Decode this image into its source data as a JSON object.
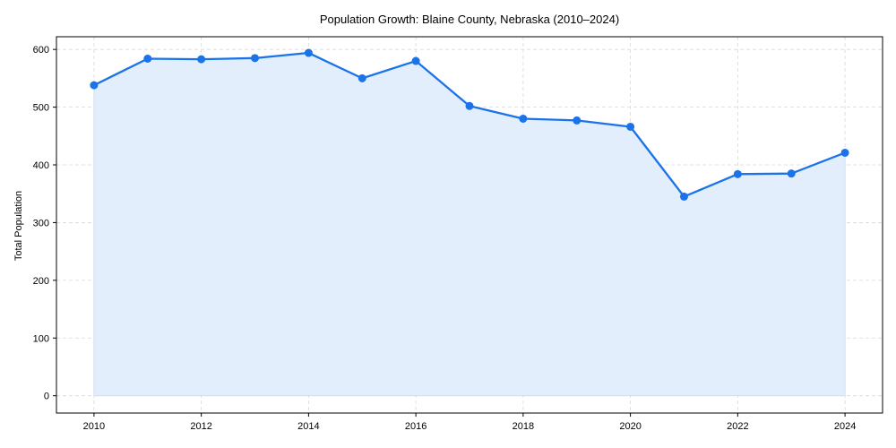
{
  "chart_data": {
    "type": "line",
    "title": "Population Growth: Blaine County, Nebraska (2010–2024)",
    "xlabel": "",
    "ylabel": "Total Population",
    "x": [
      2010,
      2011,
      2012,
      2013,
      2014,
      2015,
      2016,
      2017,
      2018,
      2019,
      2020,
      2021,
      2022,
      2023,
      2024
    ],
    "series": [
      {
        "name": "Total Population",
        "values": [
          538,
          584,
          583,
          585,
          594,
          550,
          580,
          502,
          480,
          477,
          466,
          345,
          384,
          385,
          421
        ],
        "color": "#1a73e8",
        "fill": "#e3eefd",
        "marker": "circle"
      }
    ],
    "xticks": [
      "2010",
      "2012",
      "2014",
      "2016",
      "2018",
      "2020",
      "2022",
      "2024"
    ],
    "yticks": [
      "0",
      "100",
      "200",
      "300",
      "400",
      "500",
      "600"
    ],
    "xlim": [
      2009.3,
      2024.7
    ],
    "ylim": [
      -30,
      622
    ],
    "grid": true,
    "grid_style": "dashed",
    "legend": null
  }
}
